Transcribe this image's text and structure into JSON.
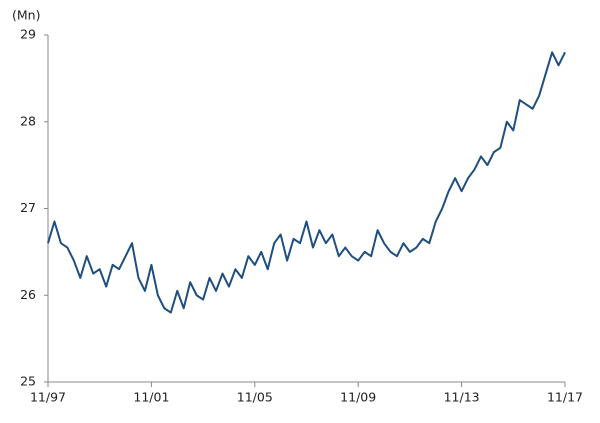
{
  "chart_data": {
    "type": "line",
    "y_label": "(Mn)",
    "categories": [
      "11/97",
      null,
      null,
      null,
      null,
      null,
      null,
      null,
      null,
      null,
      null,
      null,
      null,
      null,
      null,
      null,
      "11/01",
      null,
      null,
      null,
      null,
      null,
      null,
      null,
      null,
      null,
      null,
      null,
      null,
      null,
      null,
      null,
      "11/05",
      null,
      null,
      null,
      null,
      null,
      null,
      null,
      null,
      null,
      null,
      null,
      null,
      null,
      null,
      null,
      "11/09",
      null,
      null,
      null,
      null,
      null,
      null,
      null,
      null,
      null,
      null,
      null,
      null,
      null,
      null,
      null,
      "11/13",
      null,
      null,
      null,
      null,
      null,
      null,
      null,
      null,
      null,
      null,
      null,
      null,
      null,
      null,
      null,
      "11/17"
    ],
    "values": [
      26.6,
      26.85,
      26.6,
      26.55,
      26.4,
      26.2,
      26.45,
      26.25,
      26.3,
      26.1,
      26.35,
      26.3,
      26.45,
      26.6,
      26.2,
      26.05,
      26.35,
      26.0,
      25.85,
      25.8,
      26.05,
      25.85,
      26.15,
      26.0,
      25.95,
      26.2,
      26.05,
      26.25,
      26.1,
      26.3,
      26.2,
      26.45,
      26.35,
      26.5,
      26.3,
      26.6,
      26.7,
      26.4,
      26.65,
      26.6,
      26.85,
      26.55,
      26.75,
      26.6,
      26.7,
      26.45,
      26.55,
      26.45,
      26.4,
      26.5,
      26.45,
      26.75,
      26.6,
      26.5,
      26.45,
      26.6,
      26.5,
      26.55,
      26.65,
      26.6,
      26.85,
      27.0,
      27.2,
      27.35,
      27.2,
      27.35,
      27.45,
      27.6,
      27.5,
      27.65,
      27.7,
      28.0,
      27.9,
      28.25,
      28.2,
      28.15,
      28.3,
      28.55,
      28.8,
      28.65,
      28.8
    ],
    "color": "#1f4e80",
    "ylim": [
      25,
      29
    ],
    "yticks": [
      25,
      26,
      27,
      28,
      29
    ],
    "grid": false
  }
}
